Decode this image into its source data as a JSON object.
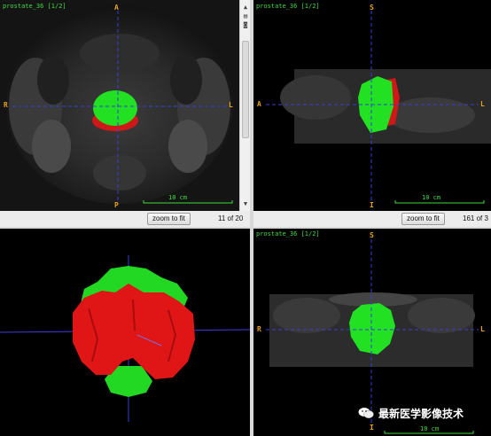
{
  "views": {
    "axial": {
      "label": "prostate_36 [1/2]",
      "orient": {
        "top": "A",
        "bottom": "P",
        "left": "R",
        "right": "L"
      },
      "scale": "10 cm",
      "zoom_button": "zoom to fit",
      "slice_counter": "11 of 20"
    },
    "sagittal": {
      "label": "prostate_36 [1/2]",
      "orient": {
        "top": "S",
        "bottom": "I",
        "left": "A",
        "right": "L"
      },
      "scale": "10 cm",
      "zoom_button": "zoom to fit",
      "slice_counter": "161 of 3"
    },
    "render3d": {},
    "coronal": {
      "label": "prostate_36 [1/2]",
      "orient": {
        "top": "S",
        "bottom": "I",
        "left": "R",
        "right": "L"
      },
      "scale": "10 cm"
    }
  },
  "scrollbar": {
    "up_icon": "arrow-up-icon",
    "down_icon": "arrow-down-icon",
    "tool1_icon": "pages-icon",
    "tool2_icon": "camera-icon"
  },
  "watermark": {
    "text": "最新医学影像技术",
    "icon": "wechat-icon"
  },
  "colors": {
    "segment_green": "#22e022",
    "segment_red": "#e01818",
    "crosshair": "#3c3cdc",
    "label_green": "#3ddc3d",
    "orient_orange": "#e8a020"
  }
}
